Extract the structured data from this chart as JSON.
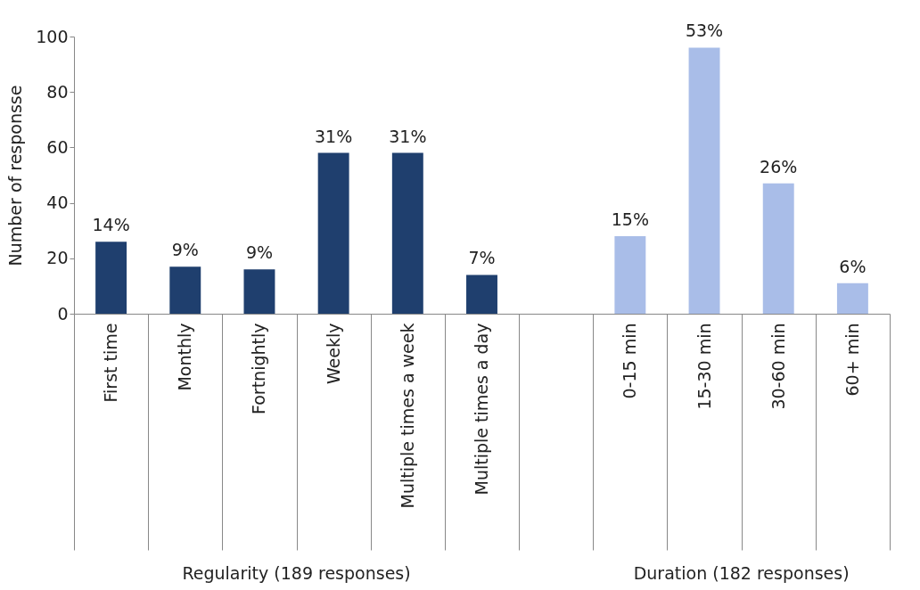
{
  "chart_data": {
    "type": "bar",
    "ylabel": "Number of responsse",
    "categories": [
      "First time",
      "Monthly",
      "Fortnightly",
      "Weekly",
      "Multiple times a week",
      "Multiple times a day",
      null,
      "0-15 min",
      "15-30 min",
      "30-60 min",
      "60+ min"
    ],
    "values": [
      26,
      17,
      16,
      58,
      58,
      14,
      null,
      28,
      96,
      47,
      11
    ],
    "colors": [
      "#1f3f6e",
      "#1f3f6e",
      "#1f3f6e",
      "#1f3f6e",
      "#1f3f6e",
      "#1f3f6e",
      "#1f3f6e",
      "#a9bde8",
      "#a9bde8",
      "#a9bde8",
      "#a9bde8"
    ],
    "ylim": [
      0,
      100
    ],
    "yticks": [
      0,
      20,
      40,
      60,
      80,
      100
    ],
    "annotations": [
      "Regularity (189 responses)",
      "Duration (182 responses)",
      {
        "text": "14%",
        "x": "First time",
        "y": 26
      },
      {
        "text": "9%",
        "x": "Monthly",
        "y": 17
      },
      {
        "text": "9%",
        "x": "Fortnightly",
        "y": 16
      },
      {
        "text": "31%",
        "x": "Weekly",
        "y": 58
      },
      {
        "text": "31%",
        "x": "Multiple times a week",
        "y": 58
      },
      {
        "text": "7%",
        "x": "Multiple times a day",
        "y": 14
      },
      {
        "text": "15%",
        "x": "0-15 min",
        "y": 28
      },
      {
        "text": "53%",
        "x": "15-30 min",
        "y": 96
      },
      {
        "text": "26%",
        "x": "30-60 min",
        "y": 47
      },
      {
        "text": "6%",
        "x": "60+ min",
        "y": 11
      }
    ]
  }
}
